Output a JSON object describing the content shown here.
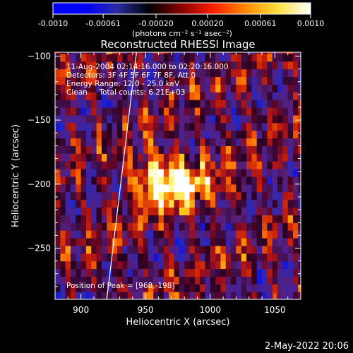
{
  "chart_data": {
    "type": "heatmap",
    "title": "Reconstructed RHESSI Image",
    "xlabel": "Heliocentric X (arcsec)",
    "ylabel": "Heliocentric Y (arcsec)",
    "xlim": [
      880,
      1070
    ],
    "ylim": [
      -290,
      -97
    ],
    "xticks": [
      900,
      950,
      1000,
      1050
    ],
    "yticks": [
      -100,
      -150,
      -200,
      -250
    ],
    "colorbar": {
      "min": -0.001,
      "max": 0.001,
      "ticks": [
        -0.001,
        -0.00061,
        -0.0002,
        0.0002,
        0.00061,
        0.001
      ],
      "tick_labels": [
        "-0.0010",
        "-0.00061",
        "-0.00020",
        "0.00020",
        "0.00061",
        "0.0010"
      ],
      "unit_label": "(photons cm⁻² s⁻¹ asec⁻²)",
      "stops": [
        "#0000ff",
        "#0000ff",
        "#2a2aa0",
        "#000000",
        "#8a0000",
        "#ff2000",
        "#ff8c00",
        "#ffe040",
        "#ffffff"
      ]
    },
    "annotations": [
      "11-Aug-2004 02:14:16.000 to 02:20:16.000",
      "Detectors: 3F 4F 5F 6F 7F 8F, Att 0",
      "Energy Range: 12.0 - 25.0 keV",
      "Clean     Total counts: 6.21E+03"
    ],
    "peak_label": "Position of Peak = [968,-198]",
    "peak": [
      968,
      -198
    ],
    "limb_line": [
      [
        920,
        -290
      ],
      [
        943,
        -97
      ]
    ],
    "footer": "2-May-2022 20:06"
  }
}
